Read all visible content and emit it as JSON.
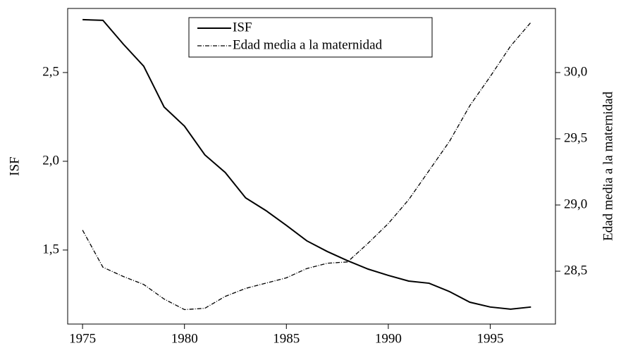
{
  "chart_data": {
    "type": "line",
    "x": [
      1975,
      1976,
      1977,
      1978,
      1979,
      1980,
      1981,
      1982,
      1983,
      1984,
      1985,
      1986,
      1987,
      1988,
      1989,
      1990,
      1991,
      1992,
      1993,
      1994,
      1995,
      1996,
      1997
    ],
    "series": [
      {
        "name": "ISF",
        "color": "#000000",
        "linestyle": "solid",
        "values": [
          2.798,
          2.794,
          2.66,
          2.536,
          2.306,
          2.198,
          2.036,
          1.937,
          1.794,
          1.722,
          1.639,
          1.552,
          1.492,
          1.44,
          1.393,
          1.357,
          1.325,
          1.313,
          1.266,
          1.206,
          1.179,
          1.167,
          1.179
        ]
      },
      {
        "name": "Edad media a la maternidad",
        "color": "#000000",
        "linestyle": "dashdot",
        "axis": "y2",
        "values": [
          28.81,
          28.53,
          28.46,
          28.4,
          28.29,
          28.21,
          28.22,
          28.31,
          28.37,
          28.41,
          28.45,
          28.52,
          28.56,
          28.57,
          28.71,
          28.86,
          29.04,
          29.26,
          29.48,
          29.75,
          29.97,
          30.2,
          30.38
        ]
      }
    ],
    "ylabel": "ISF",
    "y2label": "Edad media a la maternidad",
    "xlim": [
      1974.27,
      1998.2
    ],
    "xticks": [
      1975,
      1980,
      1985,
      1990,
      1995
    ],
    "ylim": [
      1.083,
      2.861
    ],
    "yticks": [
      {
        "value": 1.5,
        "label": "1,5"
      },
      {
        "value": 2.0,
        "label": "2,0"
      },
      {
        "value": 2.5,
        "label": "2,5"
      }
    ],
    "y2lim": [
      28.101,
      30.484
    ],
    "y2ticks": [
      {
        "value": 28.5,
        "label": "28,5"
      },
      {
        "value": 29.0,
        "label": "29,0"
      },
      {
        "value": 29.5,
        "label": "29,5"
      },
      {
        "value": 30.0,
        "label": "30,0"
      }
    ],
    "legend": "upper center"
  }
}
